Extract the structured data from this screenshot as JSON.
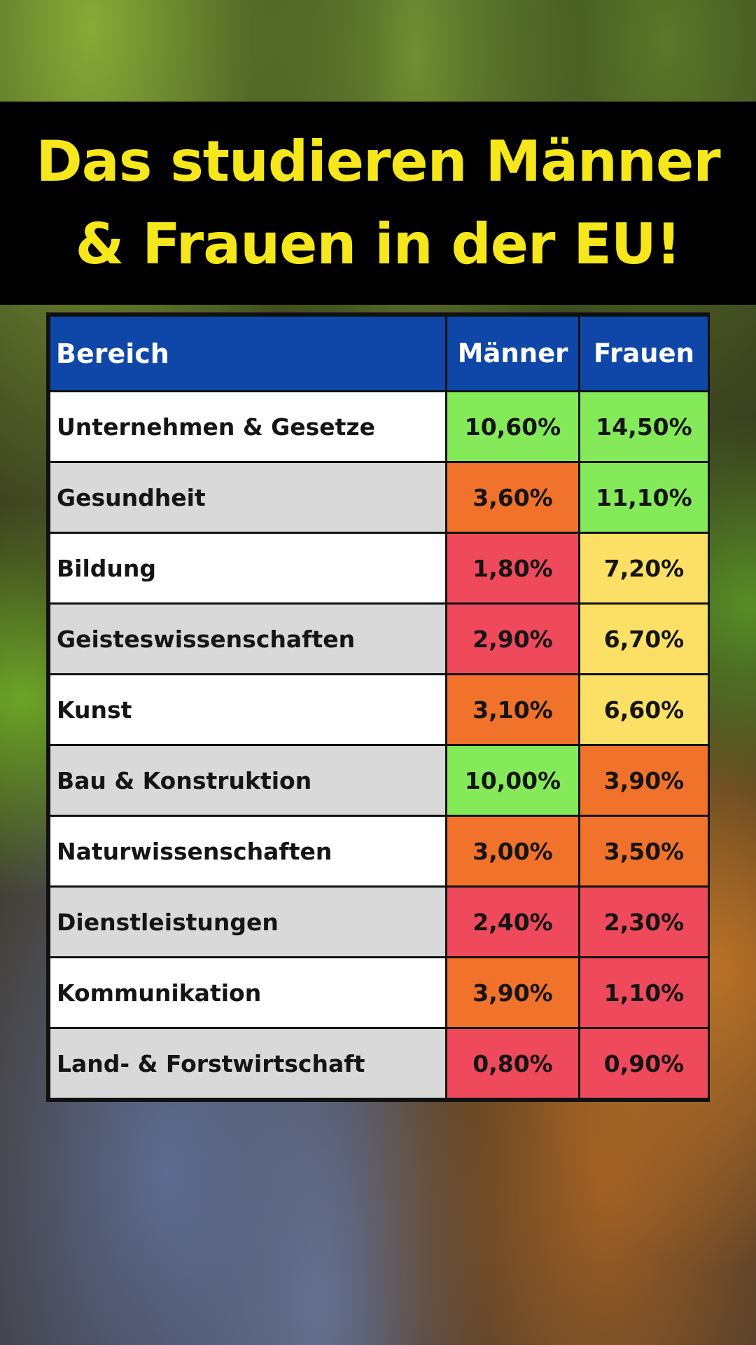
{
  "title": {
    "line1": "Das studieren Männer",
    "line2": "& Frauen in der EU!"
  },
  "colors": {
    "header_bg": "#0f47a8",
    "green": "#85ea5a",
    "orange": "#f1722a",
    "red": "#ef4a5c",
    "yellow": "#fbe065"
  },
  "chart_data": {
    "type": "table",
    "columns": [
      "Bereich",
      "Männer",
      "Frauen"
    ],
    "rows": [
      {
        "label": "Unternehmen & Gesetze",
        "men": "10,60%",
        "women": "14,50%",
        "men_color": "green",
        "women_color": "green"
      },
      {
        "label": "Gesundheit",
        "men": "3,60%",
        "women": "11,10%",
        "men_color": "orange",
        "women_color": "green"
      },
      {
        "label": "Bildung",
        "men": "1,80%",
        "women": "7,20%",
        "men_color": "red",
        "women_color": "yellow"
      },
      {
        "label": "Geisteswissenschaften",
        "men": "2,90%",
        "women": "6,70%",
        "men_color": "red",
        "women_color": "yellow"
      },
      {
        "label": "Kunst",
        "men": "3,10%",
        "women": "6,60%",
        "men_color": "orange",
        "women_color": "yellow"
      },
      {
        "label": "Bau & Konstruktion",
        "men": "10,00%",
        "women": "3,90%",
        "men_color": "green",
        "women_color": "orange"
      },
      {
        "label": "Naturwissenschaften",
        "men": "3,00%",
        "women": "3,50%",
        "men_color": "orange",
        "women_color": "orange"
      },
      {
        "label": "Dienstleistungen",
        "men": "2,40%",
        "women": "2,30%",
        "men_color": "red",
        "women_color": "red"
      },
      {
        "label": "Kommunikation",
        "men": "3,90%",
        "women": "1,10%",
        "men_color": "orange",
        "women_color": "red"
      },
      {
        "label": "Land- & Forstwirtschaft",
        "men": "0,80%",
        "women": "0,90%",
        "men_color": "red",
        "women_color": "red"
      }
    ]
  }
}
